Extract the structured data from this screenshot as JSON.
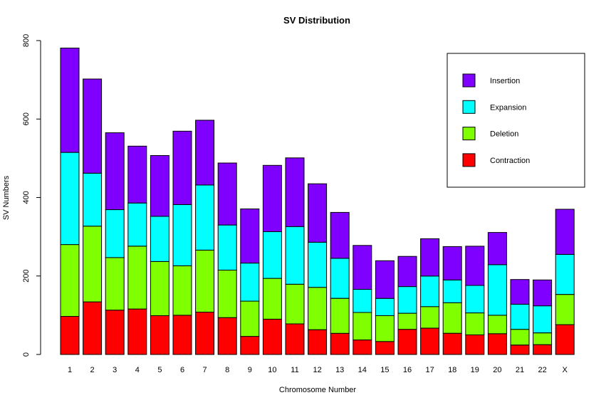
{
  "chart_data": {
    "type": "bar",
    "stacked": true,
    "title": "SV Distribution",
    "xlabel": "Chromosome Number",
    "ylabel": "SV Numbers",
    "ylim": [
      0,
      800
    ],
    "yticks": [
      0,
      200,
      400,
      600,
      800
    ],
    "grid": false,
    "legend_position": "top-right",
    "categories": [
      "1",
      "2",
      "3",
      "4",
      "5",
      "6",
      "7",
      "8",
      "9",
      "10",
      "11",
      "12",
      "13",
      "14",
      "15",
      "16",
      "17",
      "18",
      "19",
      "20",
      "21",
      "22",
      "X"
    ],
    "series": [
      {
        "name": "Contraction",
        "color": "#ff0000",
        "values": [
          97,
          134,
          113,
          116,
          99,
          100,
          108,
          94,
          46,
          90,
          78,
          63,
          54,
          37,
          33,
          64,
          67,
          54,
          50,
          53,
          24,
          25,
          76
        ]
      },
      {
        "name": "Deletion",
        "color": "#80ff00",
        "values": [
          183,
          193,
          134,
          160,
          138,
          126,
          158,
          121,
          90,
          104,
          101,
          108,
          89,
          70,
          66,
          41,
          55,
          78,
          56,
          47,
          40,
          30,
          77
        ]
      },
      {
        "name": "Expansion",
        "color": "#00ffff",
        "values": [
          235,
          135,
          122,
          110,
          115,
          156,
          166,
          115,
          97,
          119,
          147,
          115,
          102,
          59,
          44,
          68,
          78,
          58,
          70,
          129,
          64,
          69,
          102
        ]
      },
      {
        "name": "Insertion",
        "color": "#8000ff",
        "values": [
          266,
          240,
          196,
          145,
          155,
          187,
          165,
          158,
          138,
          169,
          175,
          149,
          117,
          112,
          96,
          77,
          95,
          85,
          100,
          82,
          63,
          66,
          115
        ]
      }
    ]
  }
}
